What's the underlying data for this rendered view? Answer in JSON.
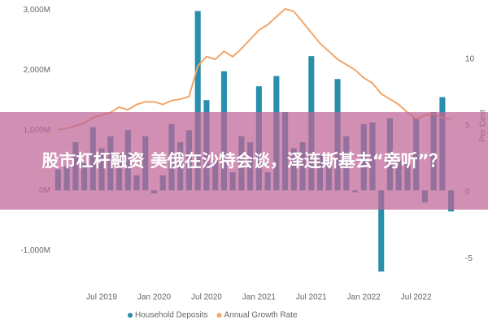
{
  "chart_data": {
    "type": "bar-line",
    "categories": [
      null,
      null,
      null,
      null,
      null,
      "Jul 2019",
      null,
      null,
      null,
      null,
      null,
      "Jan 2020",
      null,
      null,
      null,
      null,
      null,
      "Jul 2020",
      null,
      null,
      null,
      null,
      null,
      "Jan 2021",
      null,
      null,
      null,
      null,
      null,
      "Jul 2021",
      null,
      null,
      null,
      null,
      null,
      "Jan 2022",
      null,
      null,
      null,
      null,
      null,
      "Jul 2022",
      null,
      null,
      null,
      null
    ],
    "series": [
      {
        "name": "Household Deposits",
        "color": "#2a8fab",
        "values": [
          350,
          400,
          800,
          450,
          1050,
          700,
          900,
          600,
          1000,
          250,
          900,
          -50,
          250,
          1100,
          800,
          1000,
          2980,
          1500,
          500,
          1980,
          300,
          900,
          800,
          1730,
          300,
          1900,
          1300,
          700,
          800,
          2230,
          600,
          500,
          1850,
          900,
          -30,
          1100,
          1130,
          -1350,
          1200,
          500,
          450,
          1200,
          -200,
          1300,
          1550,
          -350
        ]
      },
      {
        "name": "Annual Growth Rate",
        "color": "#f2a66a",
        "axis": "y2",
        "values": [
          4.7,
          4.8,
          5.0,
          5.2,
          5.6,
          5.8,
          6.0,
          6.4,
          6.2,
          6.6,
          6.8,
          6.8,
          6.6,
          6.9,
          7.0,
          7.2,
          9.5,
          10.2,
          10.0,
          10.6,
          10.2,
          10.8,
          11.5,
          12.2,
          12.6,
          13.2,
          13.8,
          13.6,
          12.8,
          12.0,
          11.2,
          10.6,
          10.0,
          9.6,
          9.2,
          8.6,
          8.2,
          7.4,
          7.0,
          6.6,
          6.0,
          5.5,
          5.8,
          5.9,
          5.6,
          5.5
        ]
      }
    ],
    "ylim": [
      -1400,
      3150
    ],
    "yticks": [
      {
        "value": -1000,
        "label": "-1,000M"
      },
      {
        "value": 0,
        "label": "0M"
      },
      {
        "value": 1000,
        "label": "1,000M"
      },
      {
        "value": 2000,
        "label": "2,000M"
      },
      {
        "value": 3000,
        "label": "3,000M"
      }
    ],
    "y2lim": [
      -6.2,
      14.4
    ],
    "y2ticks": [
      -5,
      0,
      5,
      10
    ],
    "y2label": "Per Cent",
    "grid": false
  },
  "overlay": {
    "headline": "股市杠杆融资 美俄在沙特会谈，泽连斯基去“旁听”？"
  }
}
